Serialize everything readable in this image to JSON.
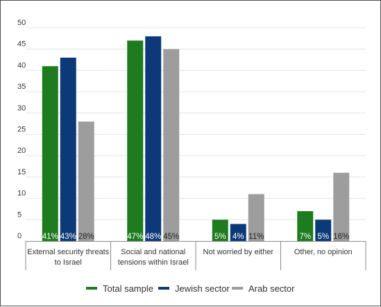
{
  "chart_data": {
    "type": "bar",
    "categories": [
      [
        "External security threats",
        "to Israel"
      ],
      [
        "Social and national",
        "tensions within Israel"
      ],
      [
        "Not worried by either"
      ],
      [
        "Other, no opinion"
      ]
    ],
    "series": [
      {
        "name": "Total sample",
        "color": "#1e7b1e",
        "values": [
          41,
          47,
          5,
          7
        ],
        "labels": [
          "41%",
          "47%",
          "5%",
          "7%"
        ],
        "label_color": "#ffffff"
      },
      {
        "name": "Jewish sector",
        "color": "#0c3a78",
        "values": [
          43,
          48,
          4,
          5
        ],
        "labels": [
          "43%",
          "48%",
          "4%",
          "5%"
        ],
        "label_color": "#ffffff"
      },
      {
        "name": "Arab sector",
        "color": "#9d9d9d",
        "values": [
          28,
          45,
          11,
          16
        ],
        "labels": [
          "28%",
          "45%",
          "11%",
          "16%"
        ],
        "label_color": "#222222"
      }
    ],
    "ylim": [
      0,
      50
    ],
    "yticks": [
      "0",
      "5",
      "10",
      "15",
      "20",
      "25",
      "30",
      "35",
      "40",
      "45",
      "50"
    ],
    "grid": true,
    "legend": "bottom-center",
    "title": "",
    "xlabel": "",
    "ylabel": ""
  }
}
